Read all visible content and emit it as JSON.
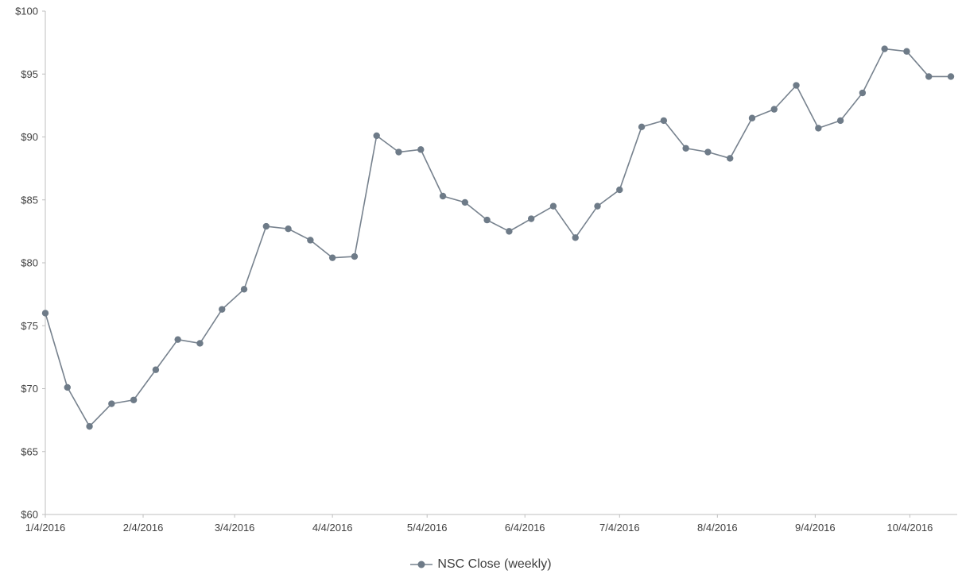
{
  "chart_data": {
    "type": "line",
    "title": "",
    "xlabel": "",
    "ylabel": "",
    "legend_position": "bottom",
    "ylim": [
      60,
      100
    ],
    "y_tick_step": 5,
    "y_ticks": [
      "$60",
      "$65",
      "$70",
      "$75",
      "$80",
      "$85",
      "$90",
      "$95",
      "$100"
    ],
    "x_ticks": [
      {
        "label": "1/4/2016",
        "day": 0
      },
      {
        "label": "2/4/2016",
        "day": 31
      },
      {
        "label": "3/4/2016",
        "day": 60
      },
      {
        "label": "4/4/2016",
        "day": 91
      },
      {
        "label": "5/4/2016",
        "day": 121
      },
      {
        "label": "6/4/2016",
        "day": 152
      },
      {
        "label": "7/4/2016",
        "day": 182
      },
      {
        "label": "8/4/2016",
        "day": 213
      },
      {
        "label": "9/4/2016",
        "day": 244
      },
      {
        "label": "10/4/2016",
        "day": 274
      }
    ],
    "total_days": 287,
    "x": [
      "1/4/2016",
      "1/11/2016",
      "1/18/2016",
      "1/25/2016",
      "2/1/2016",
      "2/8/2016",
      "2/15/2016",
      "2/22/2016",
      "2/29/2016",
      "3/7/2016",
      "3/14/2016",
      "3/21/2016",
      "3/28/2016",
      "4/4/2016",
      "4/11/2016",
      "4/18/2016",
      "4/25/2016",
      "5/2/2016",
      "5/9/2016",
      "5/16/2016",
      "5/23/2016",
      "5/30/2016",
      "6/6/2016",
      "6/13/2016",
      "6/20/2016",
      "6/27/2016",
      "7/4/2016",
      "7/11/2016",
      "7/18/2016",
      "7/25/2016",
      "8/1/2016",
      "8/8/2016",
      "8/15/2016",
      "8/22/2016",
      "8/29/2016",
      "9/5/2016",
      "9/12/2016",
      "9/19/2016",
      "9/26/2016",
      "10/3/2016",
      "10/10/2016",
      "10/17/2016"
    ],
    "series": [
      {
        "name": "NSC Close (weekly)",
        "values": [
          76.0,
          70.1,
          67.0,
          68.8,
          69.1,
          71.5,
          73.9,
          73.6,
          76.3,
          77.9,
          82.9,
          82.7,
          81.8,
          80.4,
          80.5,
          90.1,
          88.8,
          89.0,
          85.3,
          84.8,
          83.4,
          82.5,
          83.5,
          84.5,
          82.0,
          84.5,
          85.8,
          90.8,
          91.3,
          89.1,
          88.8,
          88.3,
          91.5,
          92.2,
          94.1,
          90.7,
          91.3,
          93.5,
          97.0,
          96.8,
          94.8,
          94.8
        ]
      }
    ],
    "grid": "off",
    "colors": {
      "line": "#77828e",
      "marker": "#6e7b88",
      "axis": "#bfbfbf",
      "tick_text": "#404040"
    }
  }
}
